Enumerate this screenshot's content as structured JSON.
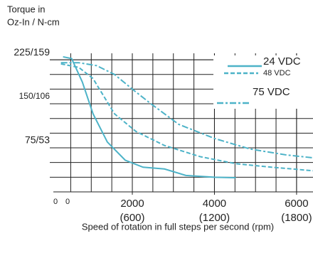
{
  "chart_data": {
    "type": "line",
    "ylabel_lines": [
      "Torque in",
      "Oz-In / N-cm"
    ],
    "xlabel": "Speed of rotation in full steps per second (rpm)",
    "origin_labels": [
      "0",
      "0"
    ],
    "xlim": [
      250,
      6400
    ],
    "xticks": [
      2000,
      4000,
      6000
    ],
    "xtick_sublabels": [
      "(600)",
      "(1200)",
      "(1800)"
    ],
    "ylim": [
      0,
      236
    ],
    "yticks": [
      {
        "value": 75,
        "label": "75/53"
      },
      {
        "value": 150,
        "label": "150/106"
      },
      {
        "value": 225,
        "label": "225/159"
      }
    ],
    "grid": true,
    "legend": "upper right",
    "series": [
      {
        "name": "24 VDC",
        "color": "#4db3c8",
        "dash": "solid",
        "x": [
          313,
          522,
          783,
          1043,
          1391,
          1826,
          2261,
          2783,
          3304,
          4000,
          4522
        ],
        "values": [
          230,
          227,
          187,
          133,
          85,
          54,
          42,
          39,
          28,
          25,
          24
        ]
      },
      {
        "name": "48 VDC",
        "color": "#4db3c8",
        "dash": "dashed",
        "x": [
          261,
          696,
          1043,
          1565,
          2087,
          2783,
          3652,
          4522,
          5391,
          6400
        ],
        "values": [
          218,
          212,
          193,
          133,
          103,
          79,
          60,
          48,
          42,
          36
        ]
      },
      {
        "name": "75 VDC",
        "color": "#4db3c8",
        "dash": "dashdot",
        "x": [
          261,
          696,
          1130,
          1565,
          2000,
          2435,
          3130,
          4000,
          4870,
          5739,
          6400
        ],
        "values": [
          220,
          220,
          215,
          200,
          175,
          151,
          115,
          91,
          73,
          63,
          58
        ]
      }
    ]
  }
}
